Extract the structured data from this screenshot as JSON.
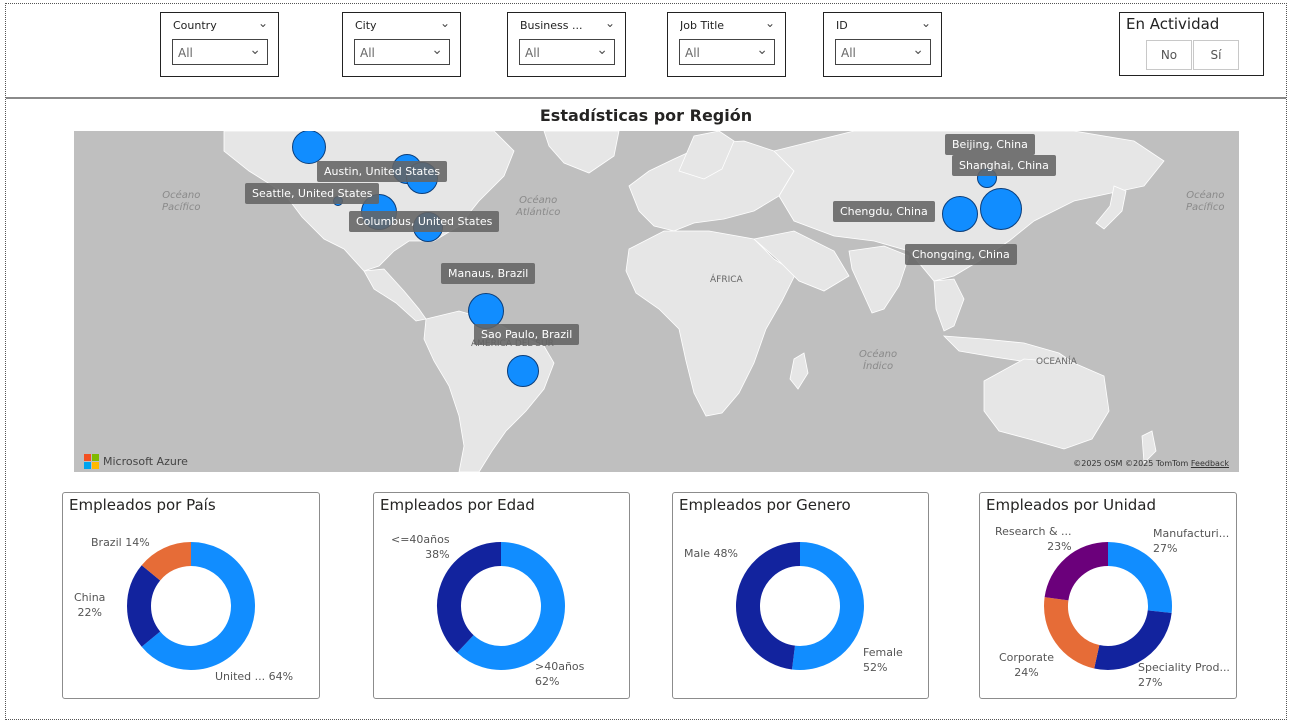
{
  "slicers": [
    {
      "label": "Country",
      "value": "All"
    },
    {
      "label": "City",
      "value": "All"
    },
    {
      "label": "Business ...",
      "value": "All"
    },
    {
      "label": "Job Title",
      "value": "All"
    },
    {
      "label": "ID",
      "value": "All"
    }
  ],
  "activity": {
    "title": "En Actividad",
    "options": [
      "No",
      "Sí"
    ]
  },
  "map": {
    "title": "Estadísticas por Región",
    "oceans": [
      "Océano\nPacífico",
      "Océano\nAtlántico",
      "Océano\nPacífico",
      "Océano\nÍndico"
    ],
    "regions": [
      "ÁFRICA",
      "AMÉRICA DEL SUR",
      "OCEANÍA"
    ],
    "cities": [
      "Austin, United States",
      "Seattle, United States",
      "Columbus, United States",
      "Manaus, Brazil",
      "Sao Paulo, Brazil",
      "Beijing, China",
      "Shanghai, China",
      "Chengdu, China",
      "Chongqing, China"
    ],
    "provider": "Microsoft Azure",
    "copyright": "©2025 OSM  ©2025 TomTom",
    "feedback": "Feedback",
    "bubble_color": "#118dff"
  },
  "charts": [
    {
      "title": "Empleados por País",
      "labels": [
        {
          "name": "Brazil",
          "pct": "14%"
        },
        {
          "name": "China",
          "pct": "22%"
        },
        {
          "name": "United ...",
          "pct": "64%"
        }
      ]
    },
    {
      "title": "Empleados por Edad",
      "labels": [
        {
          "name": "<=40años",
          "pct": "38%"
        },
        {
          "name": ">40años",
          "pct": "62%"
        }
      ]
    },
    {
      "title": "Empleados por Genero",
      "labels": [
        {
          "name": "Male",
          "pct": "48%"
        },
        {
          "name": "Female",
          "pct": "52%"
        }
      ]
    },
    {
      "title": "Empleados por Unidad",
      "labels": [
        {
          "name": "Research & ...",
          "pct": "23%"
        },
        {
          "name": "Manufacturi...",
          "pct": "27%"
        },
        {
          "name": "Corporate",
          "pct": "24%"
        },
        {
          "name": "Speciality Prod...",
          "pct": "27%"
        }
      ]
    }
  ],
  "chart_data": [
    {
      "type": "pie",
      "title": "Empleados por País",
      "categories": [
        "United ...",
        "China",
        "Brazil"
      ],
      "values": [
        64,
        22,
        14
      ],
      "colors": [
        "#118dff",
        "#12239e",
        "#e66c37"
      ]
    },
    {
      "type": "pie",
      "title": "Empleados por Edad",
      "categories": [
        ">40años",
        "<=40años"
      ],
      "values": [
        62,
        38
      ],
      "colors": [
        "#118dff",
        "#12239e"
      ]
    },
    {
      "type": "pie",
      "title": "Empleados por Genero",
      "categories": [
        "Female",
        "Male"
      ],
      "values": [
        52,
        48
      ],
      "colors": [
        "#118dff",
        "#12239e"
      ]
    },
    {
      "type": "pie",
      "title": "Empleados por Unidad",
      "categories": [
        "Manufacturi...",
        "Speciality Prod...",
        "Corporate",
        "Research & ..."
      ],
      "values": [
        27,
        27,
        24,
        23
      ],
      "colors": [
        "#118dff",
        "#12239e",
        "#e66c37",
        "#6b007b"
      ]
    }
  ]
}
